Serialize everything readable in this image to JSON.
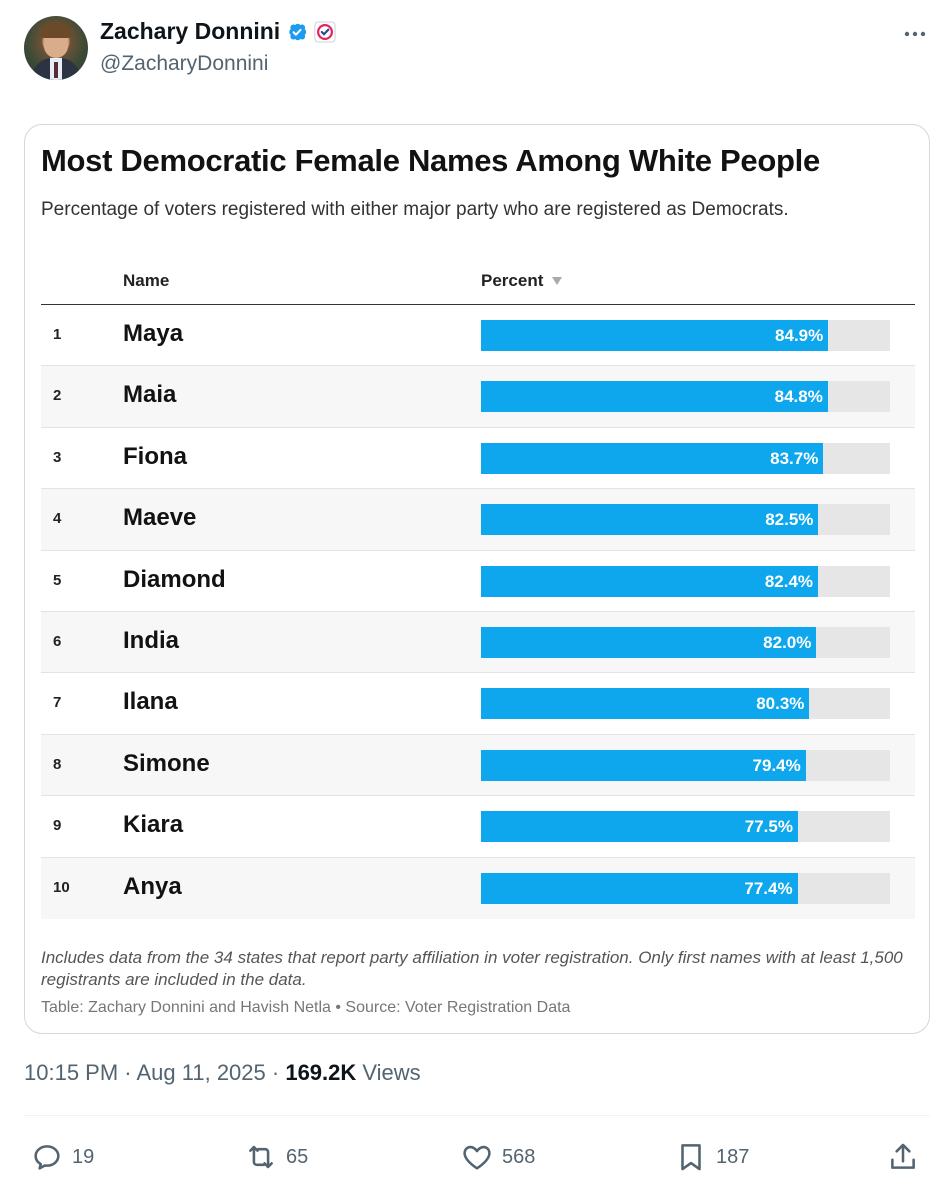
{
  "tweet": {
    "author_name": "Zachary Donnini",
    "handle": "@ZacharyDonnini",
    "timestamp": "10:15 PM · Aug 11, 2025 · ",
    "views_count": "169.2K",
    "views_label": " Views",
    "replies": "19",
    "reposts": "65",
    "likes": "568",
    "bookmarks": "187",
    "icons": [
      "verified-badge-icon",
      "affiliate-badge-icon",
      "more-icon",
      "reply-icon",
      "repost-icon",
      "like-icon",
      "bookmark-icon",
      "share-icon"
    ]
  },
  "table": {
    "title": "Most Democratic Female Names Among White People",
    "subtitle": "Percentage of voters registered with either major party who are registered as Democrats.",
    "col_name": "Name",
    "col_percent": "Percent",
    "note": "Includes data from the 34 states that report party affiliation in voter registration. Only first names with at least 1,500 registrants are included in the data.",
    "credit": "Table: Zachary Donnini and Havish Netla • Source: Voter Registration Data",
    "bar_color": "#0ea7ee",
    "track_color": "#e6e6e6",
    "rows": [
      {
        "rank": "1",
        "name": "Maya",
        "value": 84.9,
        "label": "84.9%"
      },
      {
        "rank": "2",
        "name": "Maia",
        "value": 84.8,
        "label": "84.8%"
      },
      {
        "rank": "3",
        "name": "Fiona",
        "value": 83.7,
        "label": "83.7%"
      },
      {
        "rank": "4",
        "name": "Maeve",
        "value": 82.5,
        "label": "82.5%"
      },
      {
        "rank": "5",
        "name": "Diamond",
        "value": 82.4,
        "label": "82.4%"
      },
      {
        "rank": "6",
        "name": "India",
        "value": 82.0,
        "label": "82.0%"
      },
      {
        "rank": "7",
        "name": "Ilana",
        "value": 80.3,
        "label": "80.3%"
      },
      {
        "rank": "8",
        "name": "Simone",
        "value": 79.4,
        "label": "79.4%"
      },
      {
        "rank": "9",
        "name": "Kiara",
        "value": 77.5,
        "label": "77.5%"
      },
      {
        "rank": "10",
        "name": "Anya",
        "value": 77.4,
        "label": "77.4%"
      }
    ]
  }
}
